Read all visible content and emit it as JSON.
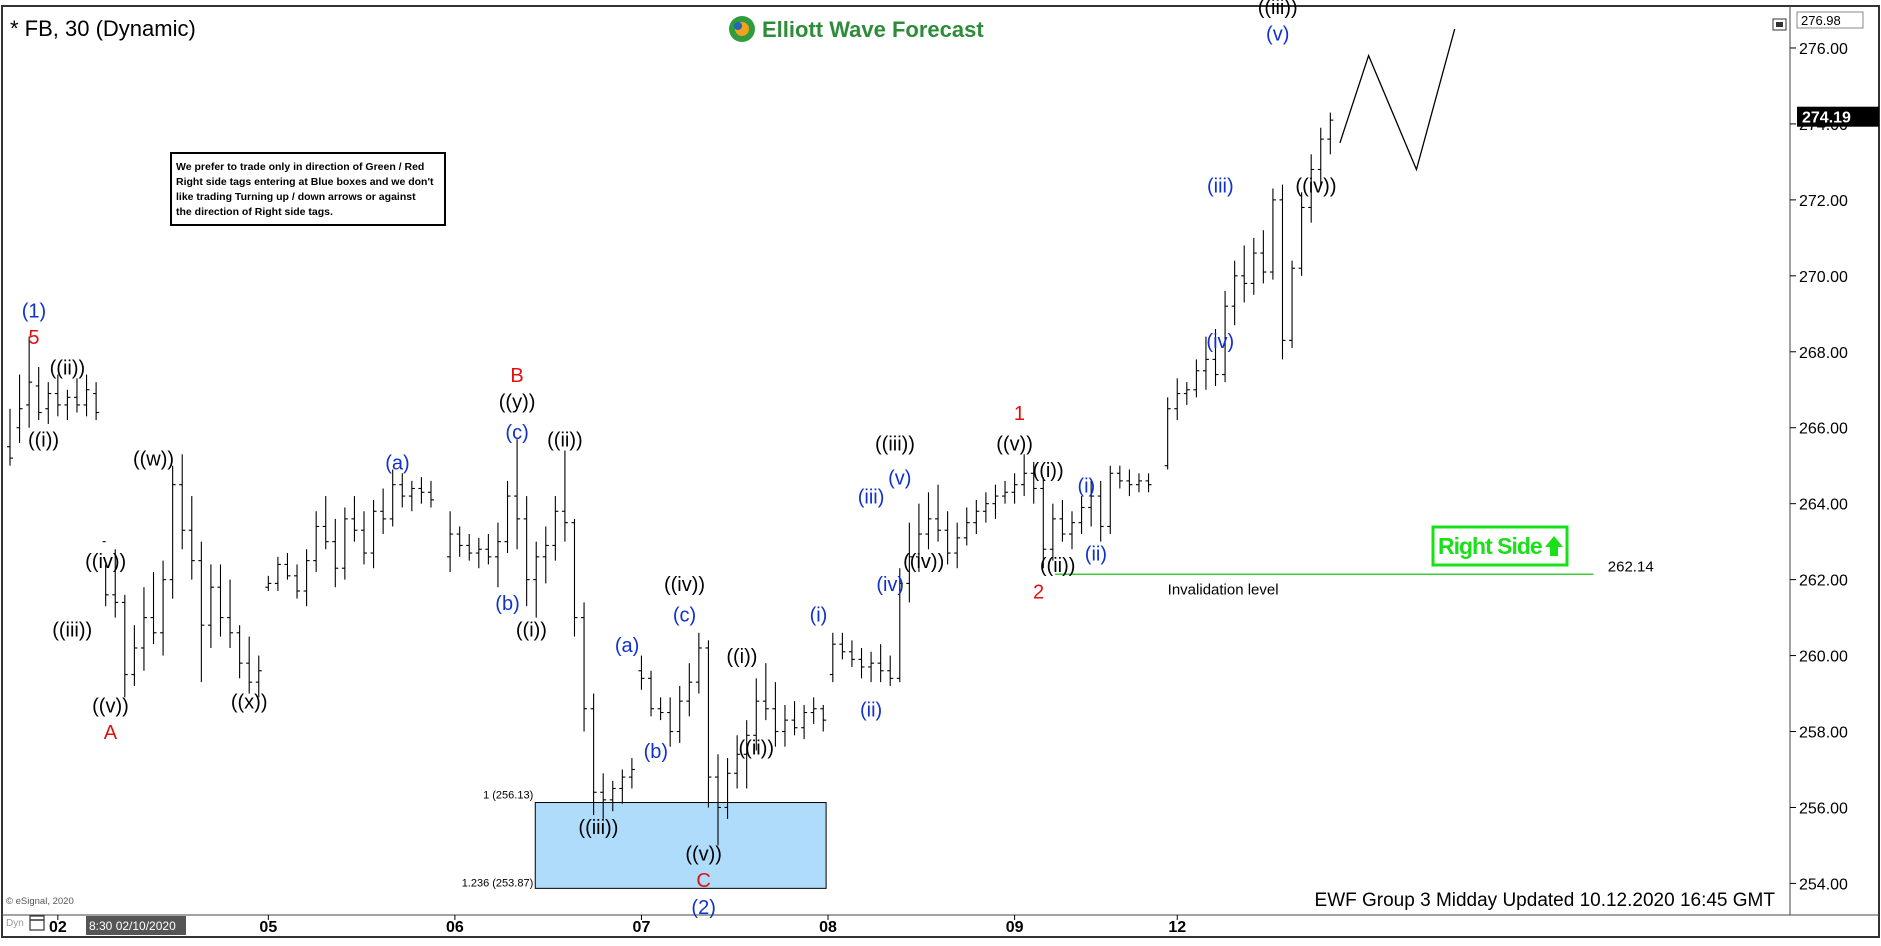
{
  "chart_data": {
    "type": "ohlc",
    "title": "* FB, 30 (Dynamic)",
    "brand": "Elliott Wave Forecast",
    "footer": "EWF Group 3 Midday Updated 10.12.2020 16:45 GMT",
    "copyright": "© eSignal, 2020",
    "dyn_label": "Dyn",
    "cursor_label": "8:30 02/10/2020",
    "note": [
      "We prefer to trade only in direction of Green / Red",
      "Right side tags entering at Blue boxes and we don't",
      "like trading Turning up / down arrows or against",
      "the direction of Right side tags."
    ],
    "right_side_label": "Right Side",
    "invalidation": {
      "label": "Invalidation level",
      "value": 262.14,
      "value_label": "262.14"
    },
    "blue_box": {
      "top": 256.13,
      "bottom": 253.87,
      "top_label": "1 (256.13)",
      "bottom_label": "1.236 (253.87)"
    },
    "ylim": [
      253.3,
      277.0
    ],
    "y_ticks": [
      "254.00",
      "256.00",
      "258.00",
      "260.00",
      "262.00",
      "264.00",
      "266.00",
      "268.00",
      "270.00",
      "272.00",
      "274.00",
      "276.00"
    ],
    "y_tick_values": [
      254,
      256,
      258,
      260,
      262,
      264,
      266,
      268,
      270,
      272,
      274,
      276
    ],
    "top_price_label": "276.98",
    "last_price": 274.19,
    "last_price_label": "274.19",
    "x_labels": [
      {
        "t": 5,
        "text": "02"
      },
      {
        "t": 27,
        "text": "05"
      },
      {
        "t": 46.5,
        "text": "06"
      },
      {
        "t": 66,
        "text": "07"
      },
      {
        "t": 85.5,
        "text": "08"
      },
      {
        "t": 105,
        "text": "09"
      },
      {
        "t": 122,
        "text": "12"
      }
    ],
    "xlim": [
      0,
      185
    ],
    "bars": [
      [
        0,
        265.5,
        266.5,
        265.0,
        265.2
      ],
      [
        1,
        266.0,
        267.4,
        265.6,
        266.5
      ],
      [
        2,
        266.6,
        268.4,
        266.0,
        267.2
      ],
      [
        3,
        267.1,
        267.6,
        266.2,
        266.4
      ],
      [
        4,
        266.5,
        267.2,
        266.1,
        266.9
      ],
      [
        5,
        266.9,
        267.4,
        266.3,
        266.6
      ],
      [
        6,
        266.6,
        267.0,
        266.2,
        266.8
      ],
      [
        7,
        266.8,
        267.3,
        266.4,
        266.6
      ],
      [
        8,
        266.6,
        267.4,
        266.3,
        267.0
      ],
      [
        9,
        266.9,
        267.2,
        266.2,
        266.4
      ],
      [
        10,
        263.0,
        262.4,
        261.3,
        261.6
      ],
      [
        11,
        261.6,
        262.8,
        261.0,
        261.4
      ],
      [
        12,
        261.4,
        261.6,
        258.9,
        259.5
      ],
      [
        13,
        259.5,
        260.8,
        259.2,
        260.2
      ],
      [
        14,
        260.2,
        261.8,
        259.6,
        261.0
      ],
      [
        15,
        261.0,
        262.2,
        260.3,
        260.6
      ],
      [
        16,
        260.6,
        262.5,
        260.0,
        262.0
      ],
      [
        17,
        262.0,
        265.0,
        261.5,
        264.5
      ],
      [
        18,
        264.5,
        265.3,
        262.8,
        263.3
      ],
      [
        19,
        263.3,
        264.2,
        262.0,
        262.5
      ],
      [
        20,
        262.5,
        263.0,
        259.3,
        260.8
      ],
      [
        21,
        260.8,
        262.4,
        260.2,
        261.8
      ],
      [
        22,
        261.8,
        262.4,
        260.5,
        261.0
      ],
      [
        23,
        261.0,
        262.0,
        260.2,
        260.6
      ],
      [
        24,
        260.6,
        260.8,
        259.4,
        259.8
      ],
      [
        25,
        259.8,
        260.5,
        259.0,
        259.3
      ],
      [
        26,
        259.3,
        260.0,
        258.9,
        259.6
      ],
      [
        27,
        261.8,
        262.1,
        261.7,
        261.9
      ],
      [
        28,
        261.9,
        262.6,
        261.7,
        262.4
      ],
      [
        29,
        262.4,
        262.7,
        262.0,
        262.1
      ],
      [
        30,
        262.1,
        262.4,
        261.5,
        261.7
      ],
      [
        31,
        261.7,
        262.8,
        261.3,
        262.5
      ],
      [
        32,
        262.5,
        263.8,
        262.2,
        263.4
      ],
      [
        33,
        263.4,
        264.2,
        262.8,
        263.0
      ],
      [
        34,
        263.0,
        263.6,
        261.8,
        262.3
      ],
      [
        35,
        262.3,
        263.9,
        262.0,
        263.6
      ],
      [
        36,
        263.6,
        264.2,
        263.0,
        263.3
      ],
      [
        37,
        263.3,
        263.8,
        262.4,
        262.7
      ],
      [
        38,
        262.7,
        264.1,
        262.3,
        263.8
      ],
      [
        39,
        263.8,
        264.4,
        263.2,
        263.6
      ],
      [
        40,
        263.6,
        264.9,
        263.4,
        264.5
      ],
      [
        41,
        264.5,
        264.8,
        263.9,
        264.2
      ],
      [
        42,
        264.2,
        264.6,
        263.8,
        264.4
      ],
      [
        43,
        264.4,
        264.7,
        264.0,
        264.3
      ],
      [
        44,
        264.3,
        264.6,
        263.9,
        264.1
      ],
      [
        46,
        262.6,
        263.8,
        262.2,
        263.2
      ],
      [
        47,
        263.2,
        263.4,
        262.6,
        262.9
      ],
      [
        48,
        262.9,
        263.2,
        262.5,
        262.7
      ],
      [
        49,
        262.7,
        263.1,
        262.3,
        262.8
      ],
      [
        50,
        262.8,
        263.2,
        262.4,
        262.6
      ],
      [
        51,
        262.6,
        263.5,
        261.8,
        263.0
      ],
      [
        52,
        263.0,
        264.6,
        262.7,
        264.2
      ],
      [
        53,
        264.2,
        265.7,
        262.8,
        263.6
      ],
      [
        54,
        263.6,
        264.2,
        261.3,
        262.0
      ],
      [
        55,
        262.0,
        263.0,
        261.0,
        262.6
      ],
      [
        56,
        262.6,
        263.4,
        261.9,
        262.9
      ],
      [
        57,
        262.9,
        264.2,
        262.5,
        263.8
      ],
      [
        58,
        263.8,
        265.4,
        263.0,
        263.5
      ],
      [
        59,
        263.5,
        263.6,
        260.5,
        261.0
      ],
      [
        60,
        261.0,
        261.4,
        258.0,
        258.6
      ],
      [
        61,
        258.6,
        259.0,
        255.8,
        256.4
      ],
      [
        62,
        256.4,
        256.9,
        255.7,
        256.2
      ],
      [
        63,
        256.2,
        256.7,
        255.9,
        256.5
      ],
      [
        64,
        256.5,
        257.0,
        256.1,
        256.8
      ],
      [
        65,
        256.8,
        257.3,
        256.5,
        257.0
      ],
      [
        66,
        259.6,
        260.0,
        259.1,
        259.4
      ],
      [
        67,
        259.4,
        259.6,
        258.4,
        258.6
      ],
      [
        68,
        258.6,
        258.9,
        258.3,
        258.5
      ],
      [
        69,
        258.5,
        258.9,
        257.6,
        258.0
      ],
      [
        70,
        258.0,
        259.2,
        257.7,
        258.8
      ],
      [
        71,
        258.8,
        259.8,
        258.4,
        259.3
      ],
      [
        72,
        259.3,
        260.6,
        259.0,
        260.2
      ],
      [
        73,
        260.2,
        260.4,
        256.0,
        256.8
      ],
      [
        74,
        256.8,
        257.4,
        255.0,
        256.0
      ],
      [
        75,
        256.0,
        257.3,
        255.7,
        256.9
      ],
      [
        76,
        256.9,
        257.9,
        256.5,
        257.4
      ],
      [
        77,
        257.4,
        258.3,
        256.5,
        257.9
      ],
      [
        78,
        257.9,
        259.4,
        257.5,
        258.8
      ],
      [
        79,
        258.8,
        259.8,
        258.3,
        258.6
      ],
      [
        80,
        258.6,
        259.3,
        257.6,
        258.0
      ],
      [
        81,
        258.0,
        258.7,
        257.6,
        258.3
      ],
      [
        82,
        258.3,
        258.8,
        257.9,
        258.1
      ],
      [
        83,
        258.1,
        258.7,
        257.8,
        258.5
      ],
      [
        84,
        258.5,
        258.9,
        258.2,
        258.6
      ],
      [
        85,
        258.6,
        258.7,
        258.0,
        258.3
      ],
      [
        86,
        259.5,
        260.6,
        259.3,
        260.3
      ],
      [
        87,
        260.3,
        260.6,
        259.9,
        260.1
      ],
      [
        88,
        260.1,
        260.4,
        259.7,
        259.9
      ],
      [
        89,
        259.9,
        260.2,
        259.4,
        259.7
      ],
      [
        90,
        259.7,
        260.1,
        259.3,
        259.8
      ],
      [
        91,
        259.8,
        260.3,
        259.3,
        259.6
      ],
      [
        92,
        259.6,
        260.0,
        259.2,
        259.4
      ],
      [
        93,
        259.4,
        262.3,
        259.3,
        261.9
      ],
      [
        94,
        261.9,
        263.5,
        261.4,
        262.6
      ],
      [
        95,
        262.6,
        264.0,
        262.2,
        263.2
      ],
      [
        96,
        263.2,
        264.3,
        262.8,
        263.6
      ],
      [
        97,
        263.6,
        264.5,
        263.0,
        263.3
      ],
      [
        98,
        263.3,
        263.8,
        262.4,
        262.7
      ],
      [
        99,
        262.7,
        263.5,
        262.3,
        263.1
      ],
      [
        100,
        263.1,
        263.9,
        262.9,
        263.5
      ],
      [
        101,
        263.5,
        264.1,
        263.2,
        263.8
      ],
      [
        102,
        263.8,
        264.3,
        263.5,
        264.0
      ],
      [
        103,
        264.0,
        264.5,
        263.6,
        264.2
      ],
      [
        104,
        264.2,
        264.6,
        264.0,
        264.3
      ],
      [
        105,
        264.3,
        264.8,
        264.0,
        264.5
      ],
      [
        106,
        264.5,
        265.3,
        264.2,
        264.8
      ],
      [
        107,
        264.8,
        265.1,
        264.0,
        264.4
      ],
      [
        108,
        264.4,
        264.7,
        262.3,
        262.8
      ],
      [
        109,
        262.8,
        264.0,
        262.5,
        263.6
      ],
      [
        110,
        263.6,
        264.1,
        263.0,
        263.2
      ],
      [
        111,
        263.2,
        263.8,
        262.8,
        263.5
      ],
      [
        112,
        263.5,
        264.2,
        263.2,
        263.9
      ],
      [
        113,
        263.9,
        264.6,
        263.4,
        264.2
      ],
      [
        114,
        264.2,
        264.6,
        263.0,
        263.4
      ],
      [
        115,
        263.4,
        265.0,
        263.2,
        264.8
      ],
      [
        116,
        264.8,
        265.0,
        264.4,
        264.6
      ],
      [
        117,
        264.6,
        264.9,
        264.2,
        264.5
      ],
      [
        118,
        264.5,
        264.8,
        264.3,
        264.6
      ],
      [
        119,
        264.6,
        264.8,
        264.3,
        264.5
      ],
      [
        121,
        265.0,
        266.8,
        264.9,
        266.5
      ],
      [
        122,
        266.5,
        267.3,
        266.2,
        266.9
      ],
      [
        123,
        266.9,
        267.2,
        266.6,
        267.0
      ],
      [
        124,
        267.0,
        267.8,
        266.8,
        267.5
      ],
      [
        125,
        267.5,
        268.4,
        267.0,
        267.8
      ],
      [
        126,
        267.8,
        268.6,
        267.1,
        267.4
      ],
      [
        127,
        267.4,
        269.6,
        267.2,
        269.2
      ],
      [
        128,
        269.2,
        270.4,
        268.7,
        270.0
      ],
      [
        129,
        270.0,
        270.8,
        269.3,
        269.8
      ],
      [
        130,
        269.8,
        271.0,
        269.5,
        270.6
      ],
      [
        131,
        270.6,
        271.2,
        269.8,
        270.1
      ],
      [
        132,
        270.1,
        272.3,
        269.9,
        272.0
      ],
      [
        133,
        272.0,
        272.4,
        267.8,
        268.3
      ],
      [
        134,
        268.3,
        270.4,
        268.1,
        270.2
      ],
      [
        135,
        270.2,
        272.2,
        270.0,
        271.8
      ],
      [
        136,
        271.8,
        273.2,
        271.4,
        272.8
      ],
      [
        137,
        272.8,
        273.9,
        272.4,
        273.6
      ],
      [
        138,
        273.6,
        274.3,
        273.2,
        274.1
      ]
    ],
    "projection": [
      [
        139,
        273.5
      ],
      [
        142,
        275.8
      ],
      [
        147,
        272.8
      ],
      [
        151,
        276.5
      ]
    ],
    "labels": [
      {
        "t": 2.5,
        "p": 268.9,
        "text": "(1)",
        "c": "blue"
      },
      {
        "t": 2.5,
        "p": 268.2,
        "text": "5",
        "c": "red"
      },
      {
        "t": 6,
        "p": 267.4,
        "text": "((ii))",
        "c": "black"
      },
      {
        "t": 3.5,
        "p": 265.5,
        "text": "((i))",
        "c": "black"
      },
      {
        "t": 15,
        "p": 265.0,
        "text": "((w))",
        "c": "black"
      },
      {
        "t": 10,
        "p": 262.3,
        "text": "((iv))",
        "c": "black"
      },
      {
        "t": 6.5,
        "p": 260.5,
        "text": "((iii))",
        "c": "black"
      },
      {
        "t": 10.5,
        "p": 258.5,
        "text": "((v))",
        "c": "black"
      },
      {
        "t": 10.5,
        "p": 257.8,
        "text": "A",
        "c": "red"
      },
      {
        "t": 25,
        "p": 258.6,
        "text": "((x))",
        "c": "black"
      },
      {
        "t": 40.5,
        "p": 264.9,
        "text": "(a)",
        "c": "blue"
      },
      {
        "t": 53,
        "p": 267.2,
        "text": "B",
        "c": "red"
      },
      {
        "t": 53,
        "p": 266.5,
        "text": "((y))",
        "c": "black"
      },
      {
        "t": 53,
        "p": 265.7,
        "text": "(c)",
        "c": "blue"
      },
      {
        "t": 52,
        "p": 261.2,
        "text": "(b)",
        "c": "blue"
      },
      {
        "t": 54.5,
        "p": 260.5,
        "text": "((i))",
        "c": "black"
      },
      {
        "t": 58,
        "p": 265.5,
        "text": "((ii))",
        "c": "black"
      },
      {
        "t": 61.5,
        "p": 255.3,
        "text": "((iii))",
        "c": "black"
      },
      {
        "t": 64.5,
        "p": 260.1,
        "text": "(a)",
        "c": "blue"
      },
      {
        "t": 67.5,
        "p": 257.3,
        "text": "(b)",
        "c": "blue"
      },
      {
        "t": 70.5,
        "p": 261.7,
        "text": "((iv))",
        "c": "black"
      },
      {
        "t": 70.5,
        "p": 260.9,
        "text": "(c)",
        "c": "blue"
      },
      {
        "t": 72.5,
        "p": 254.6,
        "text": "((v))",
        "c": "black"
      },
      {
        "t": 72.5,
        "p": 253.9,
        "text": "C",
        "c": "red"
      },
      {
        "t": 72.5,
        "p": 253.2,
        "text": "(2)",
        "c": "blue"
      },
      {
        "t": 76.5,
        "p": 259.8,
        "text": "((i))",
        "c": "black"
      },
      {
        "t": 78,
        "p": 257.4,
        "text": "((ii))",
        "c": "black"
      },
      {
        "t": 84.5,
        "p": 260.9,
        "text": "(i)",
        "c": "blue"
      },
      {
        "t": 90,
        "p": 258.4,
        "text": "(ii)",
        "c": "blue"
      },
      {
        "t": 90,
        "p": 264.0,
        "text": "(iii)",
        "c": "blue"
      },
      {
        "t": 92.5,
        "p": 265.4,
        "text": "((iii))",
        "c": "black"
      },
      {
        "t": 93,
        "p": 264.5,
        "text": "(v)",
        "c": "blue"
      },
      {
        "t": 92,
        "p": 261.7,
        "text": "(iv)",
        "c": "blue"
      },
      {
        "t": 95.5,
        "p": 262.3,
        "text": "((iv))",
        "c": "black"
      },
      {
        "t": 105.5,
        "p": 266.2,
        "text": "1",
        "c": "red"
      },
      {
        "t": 105,
        "p": 265.4,
        "text": "((v))",
        "c": "black"
      },
      {
        "t": 108.5,
        "p": 264.7,
        "text": "((i))",
        "c": "black"
      },
      {
        "t": 112.5,
        "p": 264.3,
        "text": "(i)",
        "c": "blue"
      },
      {
        "t": 109.5,
        "p": 262.2,
        "text": "((ii))",
        "c": "black"
      },
      {
        "t": 113.5,
        "p": 262.5,
        "text": "(ii)",
        "c": "blue"
      },
      {
        "t": 107.5,
        "p": 261.5,
        "text": "2",
        "c": "red"
      },
      {
        "t": 126.5,
        "p": 268.1,
        "text": "(iv)",
        "c": "blue"
      },
      {
        "t": 126.5,
        "p": 272.2,
        "text": "(iii)",
        "c": "blue"
      },
      {
        "t": 132.5,
        "p": 276.9,
        "text": "((iii))",
        "c": "black"
      },
      {
        "t": 132.5,
        "p": 276.2,
        "text": "(v)",
        "c": "blue"
      },
      {
        "t": 136.5,
        "p": 272.2,
        "text": "((iv))",
        "c": "black"
      }
    ]
  }
}
